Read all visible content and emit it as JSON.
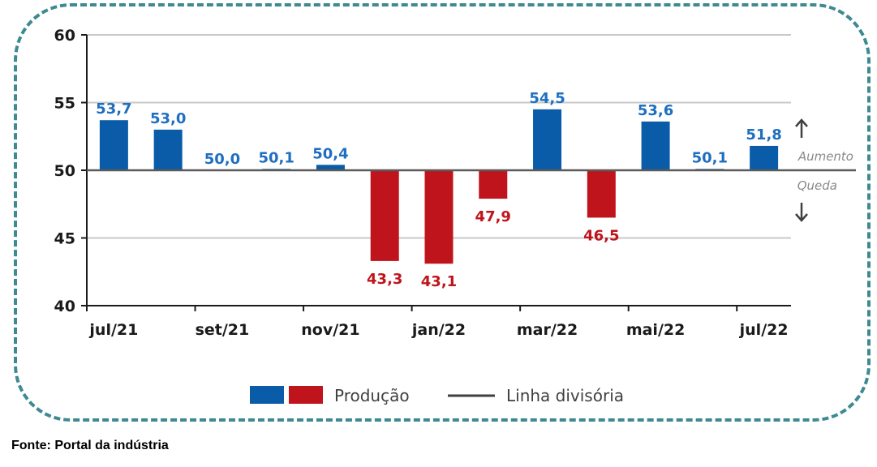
{
  "chart_data": {
    "type": "bar",
    "categories": [
      "jul/21",
      "ago/21",
      "set/21",
      "out/21",
      "nov/21",
      "dez/21",
      "jan/22",
      "fev/22",
      "mar/22",
      "abr/22",
      "mai/22",
      "jun/22",
      "jul/22"
    ],
    "x_tick_labels": [
      "jul/21",
      "set/21",
      "nov/21",
      "jan/22",
      "mar/22",
      "mai/22",
      "jul/22"
    ],
    "values": [
      53.7,
      53.0,
      50.0,
      50.1,
      50.4,
      43.3,
      43.1,
      47.9,
      54.5,
      46.5,
      53.6,
      50.1,
      51.8
    ],
    "value_labels": [
      "53,7",
      "53,0",
      "50,0",
      "50,1",
      "50,4",
      "43,3",
      "43,1",
      "47,9",
      "54,5",
      "46,5",
      "53,6",
      "50,1",
      "51,8"
    ],
    "y_ticks": [
      "40",
      "45",
      "50",
      "55",
      "60"
    ],
    "ylim": [
      40,
      60
    ],
    "baseline": 50,
    "grid": true,
    "colors": {
      "above": "#0a5ca8",
      "below": "#c0141c",
      "label_above": "#1f6fc0",
      "label_below": "#c0141c",
      "divider": "#5a5a5a"
    },
    "annotations": {
      "up": "Aumento",
      "down": "Queda"
    },
    "legend": {
      "series": "Produção",
      "line": "Linha divisória",
      "placement": "bottom"
    }
  },
  "source": "Fonte: Portal da indústria"
}
